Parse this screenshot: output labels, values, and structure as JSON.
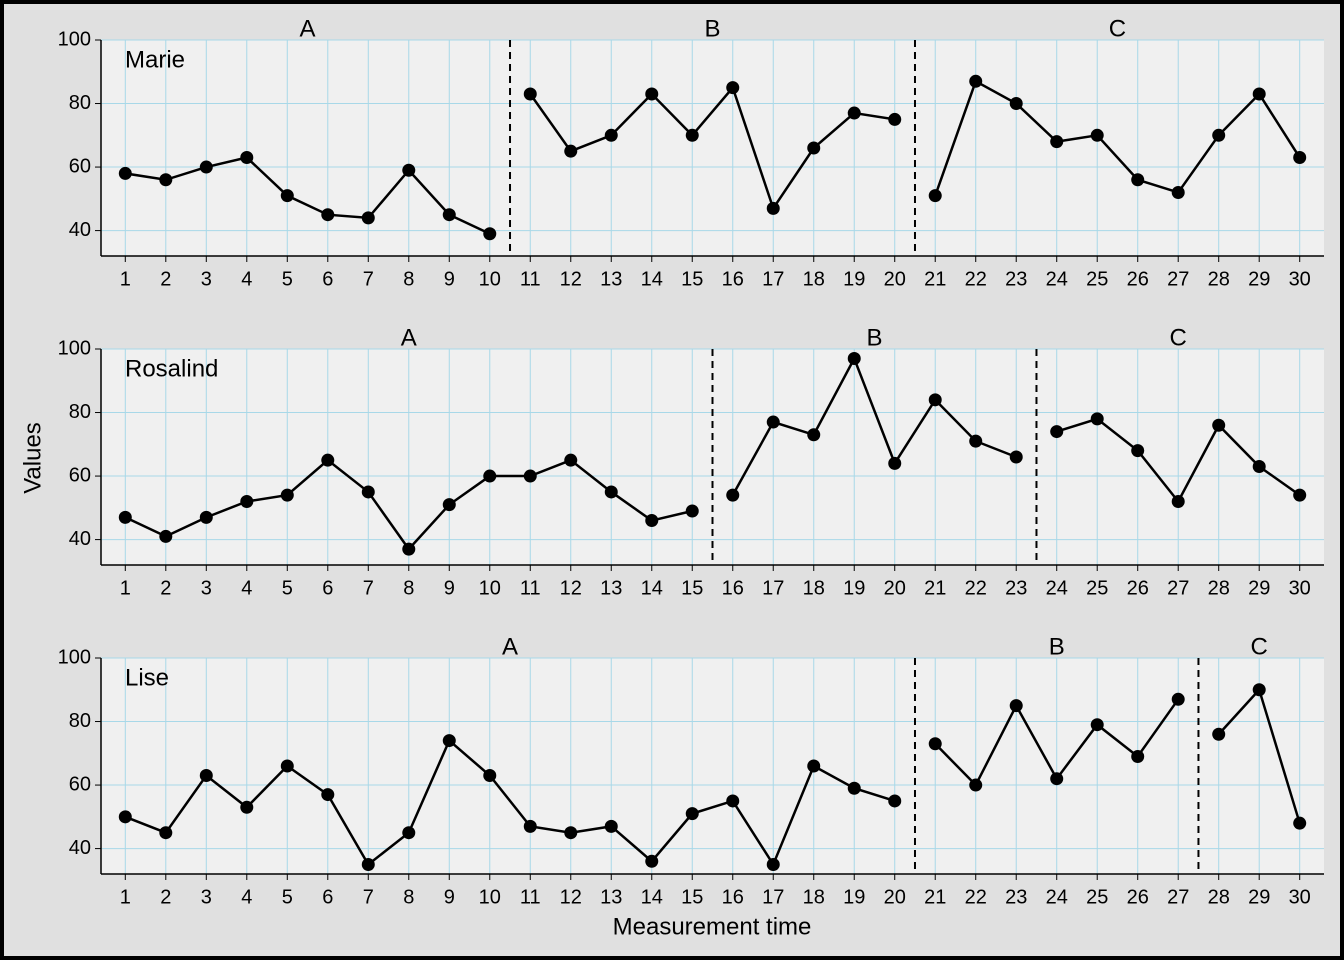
{
  "chart_data": [
    {
      "type": "line",
      "name": "Marie",
      "xlim": [
        0.4,
        30.6
      ],
      "ylim": [
        32,
        100
      ],
      "yticks": [
        40,
        60,
        80,
        100
      ],
      "xticks": [
        1,
        2,
        3,
        4,
        5,
        6,
        7,
        8,
        9,
        10,
        11,
        12,
        13,
        14,
        15,
        16,
        17,
        18,
        19,
        20,
        21,
        22,
        23,
        24,
        25,
        26,
        27,
        28,
        29,
        30
      ],
      "grid": true,
      "color": "#000000",
      "series": [
        {
          "name": "A",
          "x": [
            1,
            2,
            3,
            4,
            5,
            6,
            7,
            8,
            9,
            10
          ],
          "values": [
            58,
            56,
            60,
            63,
            51,
            45,
            44,
            59,
            45,
            39
          ]
        },
        {
          "name": "B",
          "x": [
            11,
            12,
            13,
            14,
            15,
            16,
            17,
            18,
            19,
            20
          ],
          "values": [
            83,
            65,
            70,
            83,
            70,
            85,
            47,
            66,
            77,
            75
          ]
        },
        {
          "name": "C",
          "x": [
            21,
            22,
            23,
            24,
            25,
            26,
            27,
            28,
            29,
            30
          ],
          "values": [
            51,
            87,
            80,
            68,
            70,
            56,
            52,
            70,
            83,
            63
          ]
        }
      ]
    },
    {
      "type": "line",
      "name": "Rosalind",
      "ylabel": "Values",
      "xlim": [
        0.4,
        30.6
      ],
      "ylim": [
        32,
        100
      ],
      "yticks": [
        40,
        60,
        80,
        100
      ],
      "xticks": [
        1,
        2,
        3,
        4,
        5,
        6,
        7,
        8,
        9,
        10,
        11,
        12,
        13,
        14,
        15,
        16,
        17,
        18,
        19,
        20,
        21,
        22,
        23,
        24,
        25,
        26,
        27,
        28,
        29,
        30
      ],
      "grid": true,
      "color": "#000000",
      "series": [
        {
          "name": "A",
          "x": [
            1,
            2,
            3,
            4,
            5,
            6,
            7,
            8,
            9,
            10,
            11,
            12,
            13,
            14,
            15
          ],
          "values": [
            47,
            41,
            47,
            52,
            54,
            65,
            55,
            37,
            51,
            60,
            60,
            65,
            55,
            46,
            49
          ]
        },
        {
          "name": "B",
          "x": [
            16,
            17,
            18,
            19,
            20,
            21,
            22,
            23
          ],
          "values": [
            54,
            77,
            73,
            97,
            64,
            84,
            71,
            66
          ]
        },
        {
          "name": "C",
          "x": [
            24,
            25,
            26,
            27,
            28,
            29,
            30
          ],
          "values": [
            74,
            78,
            68,
            52,
            76,
            63,
            54
          ]
        }
      ]
    },
    {
      "type": "line",
      "name": "Lise",
      "xlabel": "Measurement time",
      "xlim": [
        0.4,
        30.6
      ],
      "ylim": [
        32,
        100
      ],
      "yticks": [
        40,
        60,
        80,
        100
      ],
      "xticks": [
        1,
        2,
        3,
        4,
        5,
        6,
        7,
        8,
        9,
        10,
        11,
        12,
        13,
        14,
        15,
        16,
        17,
        18,
        19,
        20,
        21,
        22,
        23,
        24,
        25,
        26,
        27,
        28,
        29,
        30
      ],
      "grid": true,
      "color": "#000000",
      "series": [
        {
          "name": "A",
          "x": [
            1,
            2,
            3,
            4,
            5,
            6,
            7,
            8,
            9,
            10,
            11,
            12,
            13,
            14,
            15,
            16,
            17,
            18,
            19,
            20
          ],
          "values": [
            50,
            45,
            63,
            53,
            66,
            57,
            35,
            45,
            74,
            63,
            47,
            45,
            47,
            36,
            51,
            55,
            35,
            66,
            59,
            55
          ]
        },
        {
          "name": "B",
          "x": [
            21,
            22,
            23,
            24,
            25,
            26,
            27
          ],
          "values": [
            73,
            60,
            85,
            62,
            79,
            69,
            87
          ]
        },
        {
          "name": "C",
          "x": [
            28,
            29,
            30
          ],
          "values": [
            76,
            90,
            48
          ]
        }
      ]
    }
  ]
}
